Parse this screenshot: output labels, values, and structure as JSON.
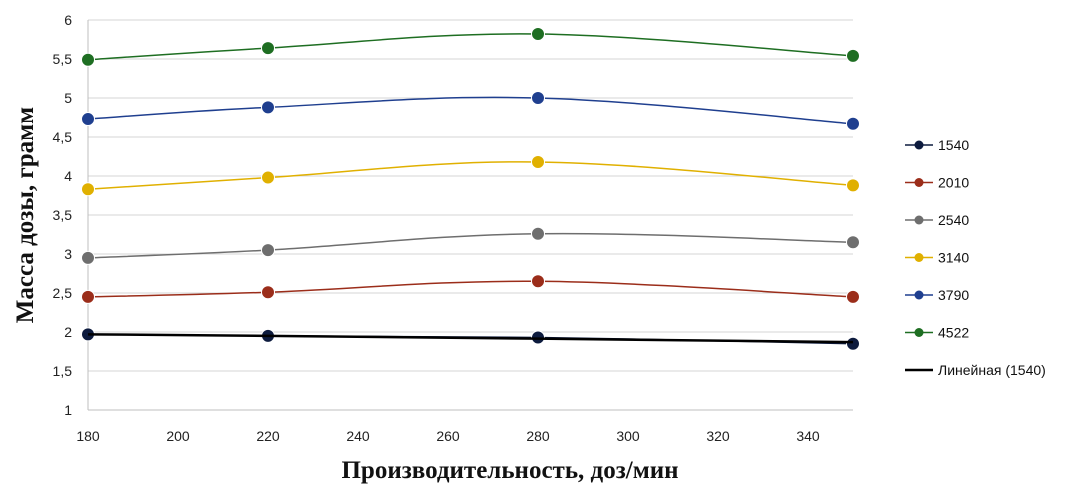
{
  "chart_data": {
    "type": "line",
    "xlabel": "Производительность, доз/мин",
    "ylabel": "Масса дозы, грамм",
    "xlim": [
      180,
      350
    ],
    "ylim": [
      1,
      6
    ],
    "x_ticks": [
      "180",
      "200",
      "220",
      "240",
      "260",
      "280",
      "300",
      "320",
      "340"
    ],
    "y_ticks": [
      "1",
      "1,5",
      "2",
      "2,5",
      "3",
      "3,5",
      "4",
      "4,5",
      "5",
      "5,5",
      "6"
    ],
    "grid": "horizontal",
    "legend_position": "right",
    "x": [
      180,
      220,
      280,
      350
    ],
    "series": [
      {
        "name": "1540",
        "color": "#0d1b3e",
        "values": [
          1.97,
          1.95,
          1.93,
          1.85
        ]
      },
      {
        "name": "2010",
        "color": "#9b2d1a",
        "values": [
          2.45,
          2.51,
          2.65,
          2.45
        ]
      },
      {
        "name": "2540",
        "color": "#6e6e6e",
        "values": [
          2.95,
          3.05,
          3.26,
          3.15
        ]
      },
      {
        "name": "3140",
        "color": "#e0b000",
        "values": [
          3.83,
          3.98,
          4.18,
          3.88
        ]
      },
      {
        "name": "3790",
        "color": "#1f3f8f",
        "values": [
          4.73,
          4.88,
          5.0,
          4.67
        ]
      },
      {
        "name": "4522",
        "color": "#1e6e22",
        "values": [
          5.49,
          5.64,
          5.82,
          5.54
        ]
      }
    ],
    "trendline": {
      "name": "Линейная (1540)",
      "color": "#000000",
      "values": [
        1.97,
        1.95,
        1.915,
        1.87
      ]
    }
  }
}
